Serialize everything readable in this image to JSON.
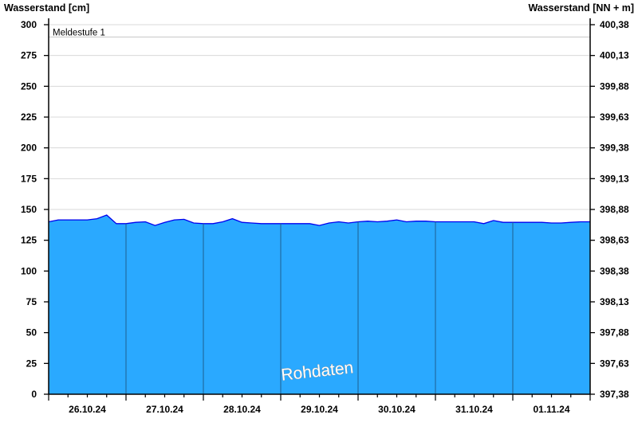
{
  "chart_data": {
    "type": "area",
    "ylabel_left": "Wasserstand [cm]",
    "ylabel_right": "Wasserstand [NN + m]",
    "ylim": [
      0,
      300
    ],
    "yticks": [
      0,
      25,
      50,
      75,
      100,
      125,
      150,
      175,
      200,
      225,
      250,
      275,
      300
    ],
    "yticks_right": [
      "397,38",
      "397,63",
      "397,88",
      "398,13",
      "398,38",
      "398,63",
      "398,88",
      "399,13",
      "399,38",
      "399,63",
      "399,88",
      "400,13",
      "400,38"
    ],
    "x_categories": [
      "26.10.24",
      "27.10.24",
      "28.10.24",
      "29.10.24",
      "30.10.24",
      "31.10.24",
      "01.11.24"
    ],
    "x_range": [
      "26.10.24 00:00",
      "02.11.24 00:00"
    ],
    "grid": true,
    "reference_line": {
      "label": "Meldestufe 1",
      "value": 290
    },
    "watermark": "Rohdaten",
    "colors": {
      "fill": "#2aa9ff",
      "line": "#0000ee",
      "day_separator": "#1f5f8f",
      "grid": "#d8d8d8"
    },
    "series": [
      {
        "sample_interval_hours": 3,
        "x": [
          "26.10 00:00",
          "26.10 03:00",
          "26.10 06:00",
          "26.10 09:00",
          "26.10 12:00",
          "26.10 15:00",
          "26.10 18:00",
          "26.10 21:00",
          "27.10 00:00",
          "27.10 03:00",
          "27.10 06:00",
          "27.10 09:00",
          "27.10 12:00",
          "27.10 15:00",
          "27.10 18:00",
          "27.10 21:00",
          "28.10 00:00",
          "28.10 03:00",
          "28.10 06:00",
          "28.10 09:00",
          "28.10 12:00",
          "28.10 15:00",
          "28.10 18:00",
          "28.10 21:00",
          "29.10 00:00",
          "29.10 03:00",
          "29.10 06:00",
          "29.10 09:00",
          "29.10 12:00",
          "29.10 15:00",
          "29.10 18:00",
          "29.10 21:00",
          "30.10 00:00",
          "30.10 03:00",
          "30.10 06:00",
          "30.10 09:00",
          "30.10 12:00",
          "30.10 15:00",
          "30.10 18:00",
          "30.10 21:00",
          "31.10 00:00",
          "31.10 03:00",
          "31.10 06:00",
          "31.10 09:00",
          "31.10 12:00",
          "31.10 15:00",
          "31.10 18:00",
          "31.10 21:00",
          "01.11 00:00",
          "01.11 03:00",
          "01.11 06:00",
          "01.11 09:00",
          "01.11 12:00",
          "01.11 15:00",
          "01.11 18:00",
          "01.11 21:00",
          "02.11 00:00"
        ],
        "values": [
          140,
          141.5,
          141.5,
          141.5,
          141.5,
          142.5,
          145.5,
          138.5,
          138.5,
          139.5,
          140,
          137,
          139.5,
          141.5,
          142,
          139,
          138.5,
          138.5,
          140,
          142.5,
          139.5,
          139,
          138.5,
          138.5,
          138.5,
          138.5,
          138.5,
          138.5,
          137,
          139,
          140,
          139,
          140,
          140.5,
          140,
          140.5,
          141.5,
          140,
          140.5,
          140.5,
          140,
          140,
          140,
          140,
          140,
          138.5,
          141,
          139.5,
          139.5,
          139.5,
          139.5,
          139.5,
          139,
          139,
          139.5,
          140,
          140
        ]
      }
    ]
  }
}
